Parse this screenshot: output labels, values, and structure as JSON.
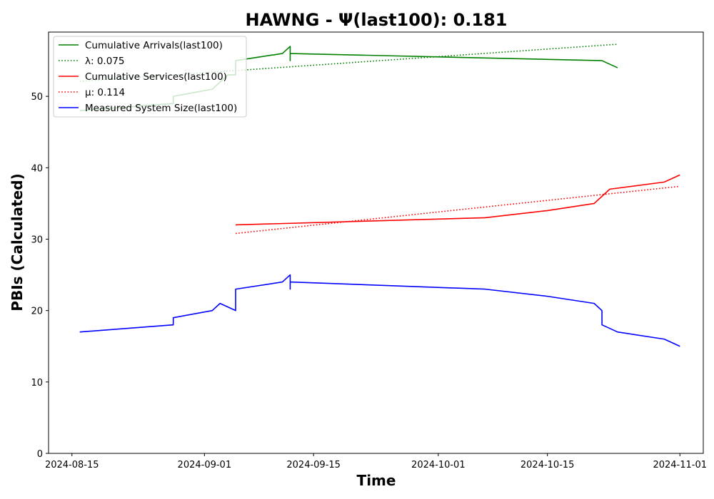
{
  "chart_data": {
    "type": "line",
    "title": "HAWNG -  Ψ(last100): 0.181",
    "xlabel": "Time",
    "ylabel": "PBIs (Calculated)",
    "x_type": "date",
    "xlim": [
      "2024-08-12",
      "2024-11-04"
    ],
    "ylim": [
      0,
      59
    ],
    "x_ticks": [
      "2024-08-15",
      "2024-09-01",
      "2024-09-15",
      "2024-10-01",
      "2024-10-15",
      "2024-11-01"
    ],
    "y_ticks": [
      0,
      10,
      20,
      30,
      40,
      50
    ],
    "grid": false,
    "legend_position": "top-left",
    "series": [
      {
        "name": "Cumulative Arrivals(last100)",
        "color": "#008000",
        "style": "solid",
        "x": [
          "2024-08-16",
          "2024-08-28",
          "2024-08-28",
          "2024-09-02",
          "2024-09-03",
          "2024-09-04",
          "2024-09-05",
          "2024-09-05",
          "2024-09-11",
          "2024-09-12",
          "2024-09-12",
          "2024-09-12",
          "2024-10-22",
          "2024-10-24"
        ],
        "y": [
          48,
          49,
          50,
          51,
          52,
          53,
          53,
          55,
          56,
          57,
          55,
          56,
          55,
          54
        ]
      },
      {
        "name": "λ: 0.075",
        "color": "#008000",
        "style": "dotted",
        "x": [
          "2024-08-16",
          "2024-10-24"
        ],
        "y": [
          52.1,
          57.3
        ]
      },
      {
        "name": "Cumulative Services(last100)",
        "color": "#ff0000",
        "style": "solid",
        "x": [
          "2024-09-05",
          "2024-10-07",
          "2024-10-15",
          "2024-10-21",
          "2024-10-22",
          "2024-10-23",
          "2024-10-30",
          "2024-11-01"
        ],
        "y": [
          32,
          33,
          34,
          35,
          36,
          37,
          38,
          39
        ]
      },
      {
        "name": "μ: 0.114",
        "color": "#ff0000",
        "style": "dotted",
        "x": [
          "2024-09-05",
          "2024-11-01"
        ],
        "y": [
          30.8,
          37.4
        ]
      },
      {
        "name": "Measured System Size(last100)",
        "color": "#0000ff",
        "style": "solid",
        "x": [
          "2024-08-16",
          "2024-08-28",
          "2024-08-28",
          "2024-09-02",
          "2024-09-03",
          "2024-09-05",
          "2024-09-05",
          "2024-09-11",
          "2024-09-12",
          "2024-09-12",
          "2024-09-12",
          "2024-10-07",
          "2024-10-15",
          "2024-10-21",
          "2024-10-22",
          "2024-10-22",
          "2024-10-24",
          "2024-10-30",
          "2024-11-01"
        ],
        "y": [
          17,
          18,
          19,
          20,
          21,
          20,
          23,
          24,
          25,
          23,
          24,
          23,
          22,
          21,
          20,
          18,
          17,
          16,
          15
        ]
      }
    ]
  }
}
